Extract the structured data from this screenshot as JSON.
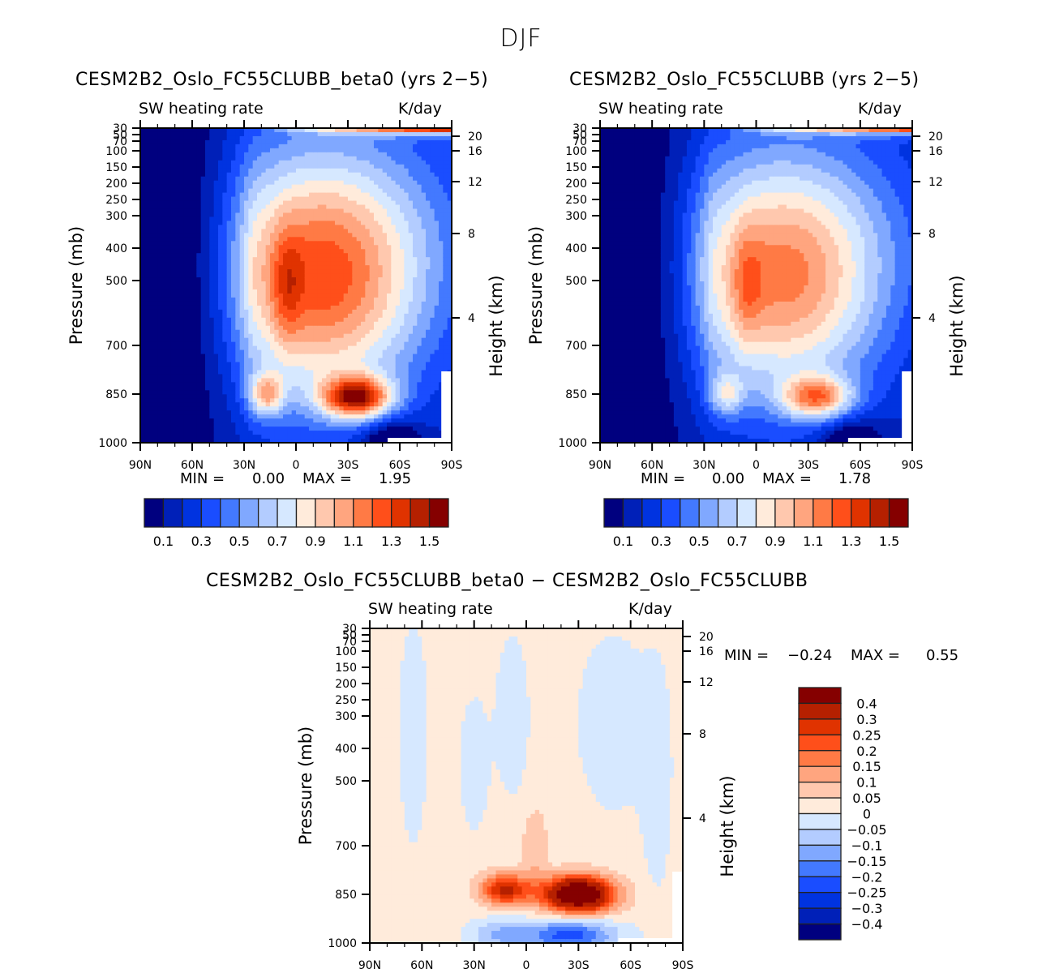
{
  "figure": {
    "title": "DJF"
  },
  "chart_data": [
    {
      "type": "heatmap",
      "id": "panel1",
      "title": "CESM2B2_Oslo_FC55CLUBB_beta0 (yrs 2−5)",
      "left_string": "SW heating rate",
      "right_string": "K/day",
      "xlabel": "",
      "ylabel": "Pressure (mb)",
      "ylabel_right": "Height (km)",
      "x_ticks": [
        "90N",
        "60N",
        "30N",
        "0",
        "30S",
        "60S",
        "90S"
      ],
      "x_range": [
        90,
        -90
      ],
      "y_ticks": [
        "30",
        "50",
        "70",
        "100",
        "150",
        "200",
        "250",
        "300",
        "400",
        "500",
        "700",
        "850",
        "1000"
      ],
      "y_tick_values": [
        30,
        50,
        70,
        100,
        150,
        200,
        250,
        300,
        400,
        500,
        700,
        850,
        1000
      ],
      "y_range": [
        30,
        1000
      ],
      "height_ticks": [
        "20",
        "16",
        "12",
        "8",
        "4"
      ],
      "height_tick_pressures": [
        55,
        100,
        195,
        355,
        615
      ],
      "min_label": "MIN =",
      "min_value": "0.00",
      "max_label": "MAX =",
      "max_value": "1.95",
      "levels": [
        0.1,
        0.2,
        0.3,
        0.4,
        0.5,
        0.6,
        0.7,
        0.8,
        0.9,
        1.0,
        1.1,
        1.2,
        1.3,
        1.4,
        1.5
      ],
      "colorbar_labels": [
        "0.1",
        "0.3",
        "0.5",
        "0.7",
        "0.9",
        "1.1",
        "1.3",
        "1.5"
      ],
      "colorbar_orientation": "horizontal",
      "features": [
        {
          "desc": "low-level maximum",
          "lat": -35,
          "pressure": 860,
          "value": 1.95
        },
        {
          "desc": "secondary maximum",
          "lat": 17,
          "pressure": 850,
          "value": 1.3
        },
        {
          "desc": "upper stratospheric maximum",
          "lat": -85,
          "pressure": 35,
          "value": 1.5
        }
      ]
    },
    {
      "type": "heatmap",
      "id": "panel2",
      "title": "CESM2B2_Oslo_FC55CLUBB (yrs 2−5)",
      "left_string": "SW heating rate",
      "right_string": "K/day",
      "ylabel": "Pressure (mb)",
      "ylabel_right": "Height (km)",
      "x_ticks": [
        "90N",
        "60N",
        "30N",
        "0",
        "30S",
        "60S",
        "90S"
      ],
      "x_range": [
        90,
        -90
      ],
      "y_ticks": [
        "30",
        "50",
        "70",
        "100",
        "150",
        "200",
        "250",
        "300",
        "400",
        "500",
        "700",
        "850",
        "1000"
      ],
      "y_tick_values": [
        30,
        50,
        70,
        100,
        150,
        200,
        250,
        300,
        400,
        500,
        700,
        850,
        1000
      ],
      "y_range": [
        30,
        1000
      ],
      "height_ticks": [
        "20",
        "16",
        "12",
        "8",
        "4"
      ],
      "height_tick_pressures": [
        55,
        100,
        195,
        355,
        615
      ],
      "min_label": "MIN =",
      "min_value": "0.00",
      "max_label": "MAX =",
      "max_value": "1.78",
      "levels": [
        0.1,
        0.2,
        0.3,
        0.4,
        0.5,
        0.6,
        0.7,
        0.8,
        0.9,
        1.0,
        1.1,
        1.2,
        1.3,
        1.4,
        1.5
      ],
      "colorbar_labels": [
        "0.1",
        "0.3",
        "0.5",
        "0.7",
        "0.9",
        "1.1",
        "1.3",
        "1.5"
      ],
      "colorbar_orientation": "horizontal",
      "features": [
        {
          "desc": "low-level maximum",
          "lat": -40,
          "pressure": 860,
          "value": 1.78
        },
        {
          "desc": "secondary maximum",
          "lat": 15,
          "pressure": 850,
          "value": 1.2
        },
        {
          "desc": "upper stratospheric maximum",
          "lat": -85,
          "pressure": 35,
          "value": 1.5
        }
      ]
    },
    {
      "type": "heatmap",
      "id": "panel3",
      "title": "CESM2B2_Oslo_FC55CLUBB_beta0 − CESM2B2_Oslo_FC55CLUBB",
      "left_string": "SW heating rate",
      "right_string": "K/day",
      "ylabel": "Pressure (mb)",
      "ylabel_right": "Height (km)",
      "x_ticks": [
        "90N",
        "60N",
        "30N",
        "0",
        "30S",
        "60S",
        "90S"
      ],
      "x_range": [
        90,
        -90
      ],
      "y_ticks": [
        "30",
        "50",
        "70",
        "100",
        "150",
        "200",
        "250",
        "300",
        "400",
        "500",
        "700",
        "850",
        "1000"
      ],
      "y_tick_values": [
        30,
        50,
        70,
        100,
        150,
        200,
        250,
        300,
        400,
        500,
        700,
        850,
        1000
      ],
      "y_range": [
        30,
        1000
      ],
      "height_ticks": [
        "20",
        "16",
        "12",
        "8",
        "4"
      ],
      "height_tick_pressures": [
        55,
        100,
        195,
        355,
        615
      ],
      "min_label": "MIN =",
      "min_value": "−0.24",
      "max_label": "MAX =",
      "max_value": "0.55",
      "levels": [
        -0.4,
        -0.3,
        -0.25,
        -0.2,
        -0.15,
        -0.1,
        -0.05,
        0,
        0.05,
        0.1,
        0.15,
        0.2,
        0.25,
        0.3,
        0.4
      ],
      "colorbar_labels": [
        "0.4",
        "0.3",
        "0.25",
        "0.2",
        "0.15",
        "0.1",
        "0.05",
        "0",
        "−0.05",
        "−0.1",
        "−0.15",
        "−0.2",
        "−0.25",
        "−0.3",
        "−0.4"
      ],
      "colorbar_orientation": "vertical",
      "features": [
        {
          "desc": "positive maximum",
          "lat": -30,
          "pressure": 850,
          "value": 0.55
        },
        {
          "desc": "secondary positive",
          "lat": 12,
          "pressure": 835,
          "value": 0.25
        },
        {
          "desc": "negative minimum",
          "lat": -25,
          "pressure": 970,
          "value": -0.24
        }
      ]
    }
  ],
  "colormap": [
    "#00007f",
    "#0020b8",
    "#0033e0",
    "#1a4dff",
    "#4379ff",
    "#80a8ff",
    "#b3ccff",
    "#d6e8ff",
    "#ffebdb",
    "#ffc8ae",
    "#ffa57f",
    "#ff7a45",
    "#ff4f1a",
    "#e03300",
    "#b52000",
    "#850000"
  ]
}
